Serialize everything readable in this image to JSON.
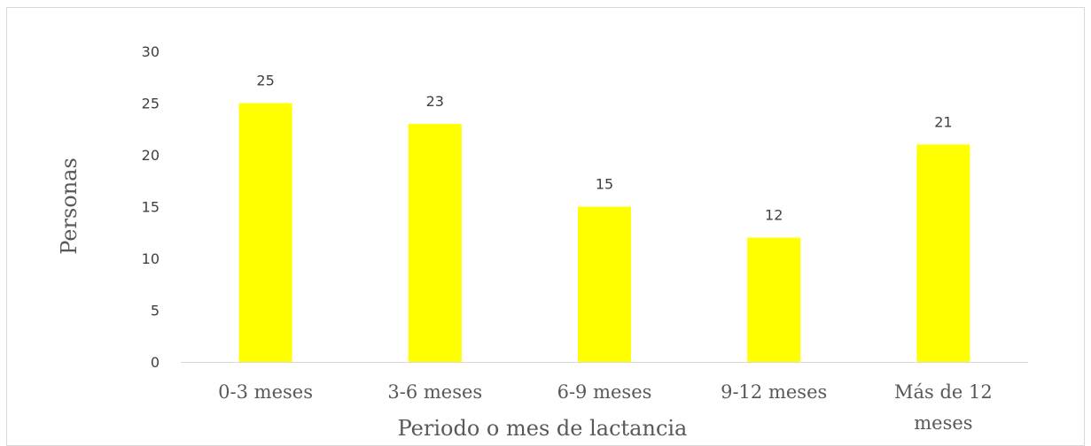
{
  "chart_data": {
    "type": "bar",
    "categories": [
      "0-3 meses",
      "3-6 meses",
      "6-9 meses",
      "9-12 meses",
      "Más de 12 meses"
    ],
    "category_lines": [
      [
        "0-3 meses"
      ],
      [
        "3-6 meses"
      ],
      [
        "6-9 meses"
      ],
      [
        "9-12 meses"
      ],
      [
        "Más de 12",
        "meses"
      ]
    ],
    "values": [
      25,
      23,
      15,
      12,
      21
    ],
    "xlabel": "Periodo o mes de lactancia",
    "ylabel": "Personas",
    "ylim": [
      0,
      30
    ],
    "yticks": [
      "0",
      "5",
      "10",
      "15",
      "20",
      "25",
      "30"
    ],
    "bar_color": "#ffff00",
    "grid": false,
    "data_labels": true
  }
}
